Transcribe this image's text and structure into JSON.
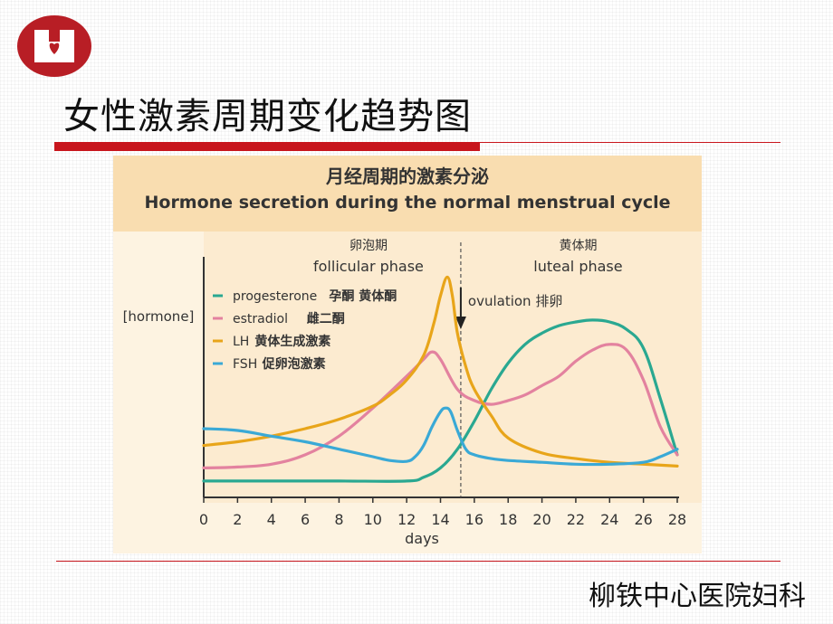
{
  "slide": {
    "title": "女性激素周期变化趋势图",
    "footer": "柳铁中心医院妇科",
    "logo_name": "hospital-logo",
    "accent_color": "#c8161d"
  },
  "chart_data": {
    "type": "line",
    "title_cn": "月经周期的激素分泌",
    "title": "Hormone secretion during the normal menstrual cycle",
    "ylabel": "[hormone]",
    "xlabel": "days",
    "xlim": [
      0,
      28
    ],
    "ylim": [
      0,
      100
    ],
    "x_ticks": [
      0,
      2,
      4,
      6,
      8,
      10,
      12,
      14,
      16,
      18,
      20,
      22,
      24,
      26,
      28
    ],
    "grid": false,
    "legend_position": "upper-left",
    "phases": [
      {
        "name_cn": "卵泡期",
        "name_en": "follicular phase"
      },
      {
        "name_cn": "黄体期",
        "name_en": "luteal phase"
      }
    ],
    "ovulation": {
      "day": 15.2,
      "label": "ovulation  排卵"
    },
    "series": [
      {
        "name": "progesterone",
        "name_cn": "孕酮  黄体酮",
        "color": "#2aa891",
        "x": [
          0,
          4,
          8,
          12,
          13,
          14,
          15,
          16,
          17,
          18,
          19,
          20,
          21,
          22,
          23,
          24,
          25,
          26,
          27,
          28
        ],
        "y": [
          1,
          1,
          1,
          1,
          3,
          8,
          18,
          33,
          50,
          64,
          74,
          80,
          84,
          86,
          87,
          86,
          82,
          72,
          45,
          15
        ]
      },
      {
        "name": "estradiol",
        "name_cn": "雌二酮",
        "color": "#e3829f",
        "x": [
          0,
          2,
          4,
          6,
          8,
          10,
          12,
          13,
          13.5,
          14,
          15,
          16,
          17,
          18,
          19,
          20,
          21,
          22,
          23,
          24,
          25,
          26,
          27,
          28
        ],
        "y": [
          8,
          8.5,
          10,
          15,
          25,
          40,
          57,
          66,
          70,
          66,
          50,
          44,
          42,
          44,
          47,
          52,
          57,
          65,
          71,
          74,
          71,
          55,
          30,
          15
        ],
        "note_position": "dot"
      },
      {
        "name": "LH",
        "name_cn": "黄体生成激素",
        "color": "#e8a51a",
        "x": [
          0,
          2,
          4,
          6,
          8,
          10,
          11,
          12,
          13,
          13.6,
          14,
          14.4,
          14.7,
          15,
          15.5,
          16,
          17,
          18,
          20,
          22,
          24,
          26,
          28
        ],
        "y": [
          20,
          22,
          25,
          29,
          34,
          41,
          47,
          55,
          68,
          85,
          100,
          110,
          100,
          80,
          62,
          50,
          36,
          24,
          16,
          13,
          11,
          10,
          9
        ]
      },
      {
        "name": "FSH",
        "name_cn": "促卵泡激素",
        "color": "#3aa9d6",
        "x": [
          0,
          2,
          4,
          6,
          8,
          10,
          11,
          12,
          12.5,
          13,
          13.5,
          14,
          14.3,
          14.6,
          15,
          15.5,
          16,
          17,
          18,
          20,
          22,
          24,
          26,
          27,
          28
        ],
        "y": [
          29,
          28,
          25,
          22,
          18,
          14,
          12,
          11.5,
          14,
          20,
          30,
          38,
          40,
          38,
          28,
          18,
          15,
          13,
          12,
          11,
          10,
          10,
          11,
          14,
          18
        ]
      }
    ]
  }
}
